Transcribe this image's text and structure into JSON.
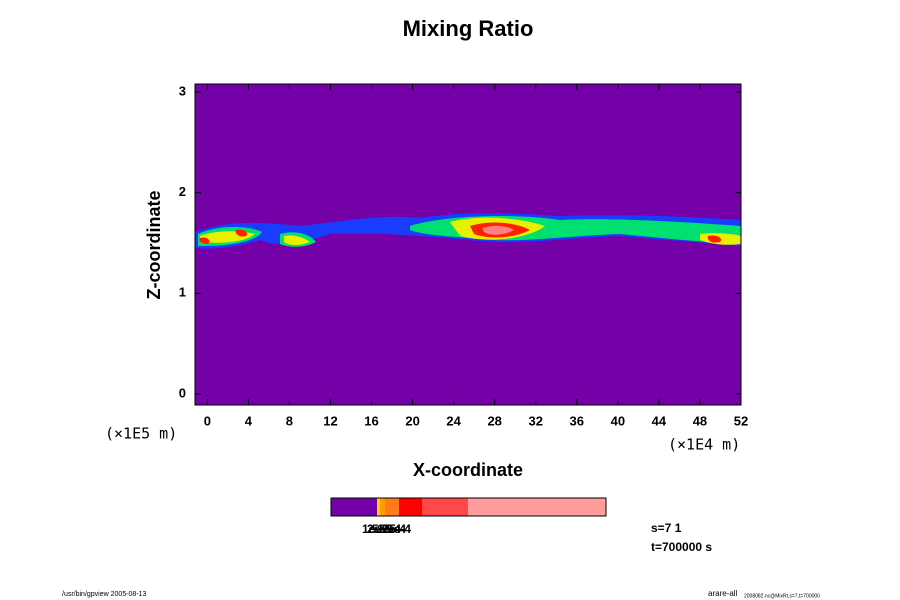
{
  "chart_data": {
    "type": "contour",
    "title": "Mixing Ratio",
    "x_label": "X-coordinate",
    "y_label": "Z-coordinate",
    "x_unit": "(×1E4 m)",
    "y_unit": "(×1E5 m)",
    "xlim": [
      -1.2,
      52
    ],
    "xticks": [
      0,
      4,
      8,
      12,
      16,
      20,
      24,
      28,
      32,
      36,
      40,
      44,
      48,
      52
    ],
    "ylim": [
      -0.11,
      3.08
    ],
    "yticks": [
      0,
      1,
      2,
      3
    ],
    "background_color": "#7400a8",
    "colorbar": {
      "colors": [
        "#7400a8",
        "#ffd200",
        "#ff9a00",
        "#ff7a1a",
        "#ff0000",
        "#ff4848",
        "#ff9c9c"
      ],
      "labels": [
        "1e-5",
        "2e-5",
        "5e-5",
        "1e-4",
        "2e-4",
        "5e-4"
      ]
    },
    "info": [
      "s=7 1",
      "t=700000 s"
    ],
    "footer_left": "/usr/bin/gpview 2005-08-13",
    "footer_right": "arare-all",
    "footer_right_sub": "2008082.nc@MixRt,s=7,t=700000"
  }
}
